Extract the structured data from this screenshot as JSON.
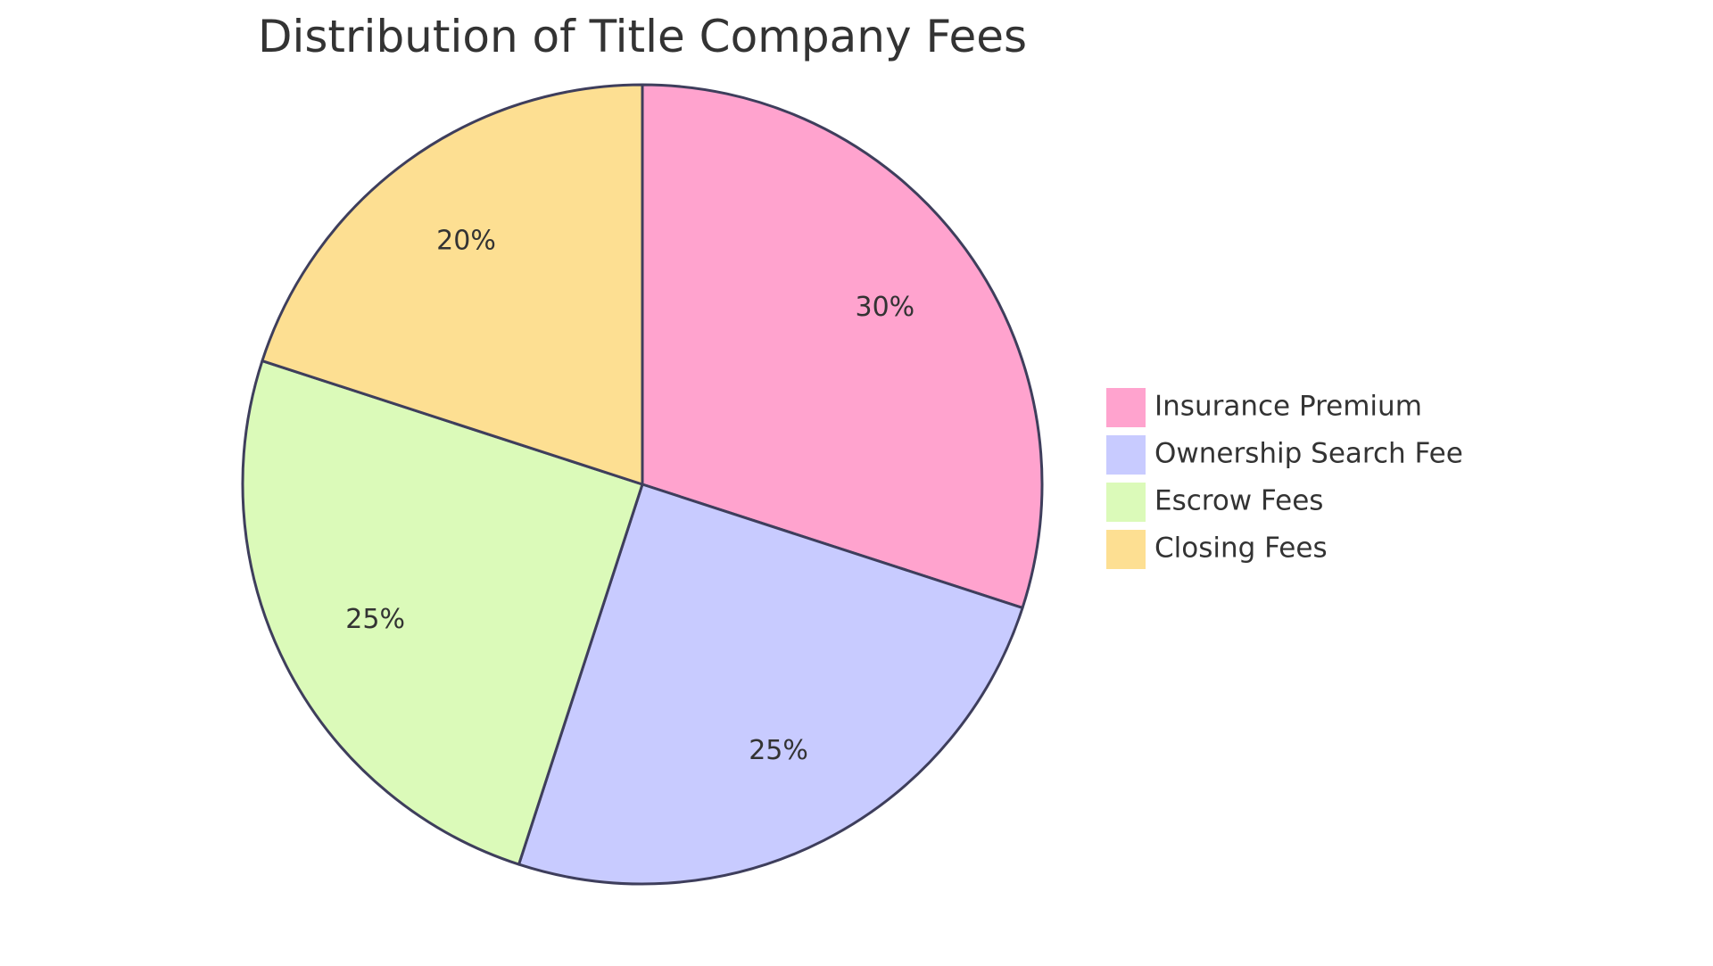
{
  "chart_data": {
    "type": "pie",
    "title": "Distribution of Title Company Fees",
    "slices": [
      {
        "label": "Insurance Premium",
        "value": 30,
        "display": "30%",
        "color": "#FFA3CE"
      },
      {
        "label": "Ownership Search Fee",
        "value": 25,
        "display": "25%",
        "color": "#C8CBFF"
      },
      {
        "label": "Escrow Fees",
        "value": 25,
        "display": "25%",
        "color": "#DBFAB9"
      },
      {
        "label": "Closing Fees",
        "value": 20,
        "display": "20%",
        "color": "#FDDF92"
      }
    ],
    "start_angle_deg": -90,
    "direction": "clockwise",
    "legend_position": "right",
    "stroke_color": "#3E3E5C"
  }
}
